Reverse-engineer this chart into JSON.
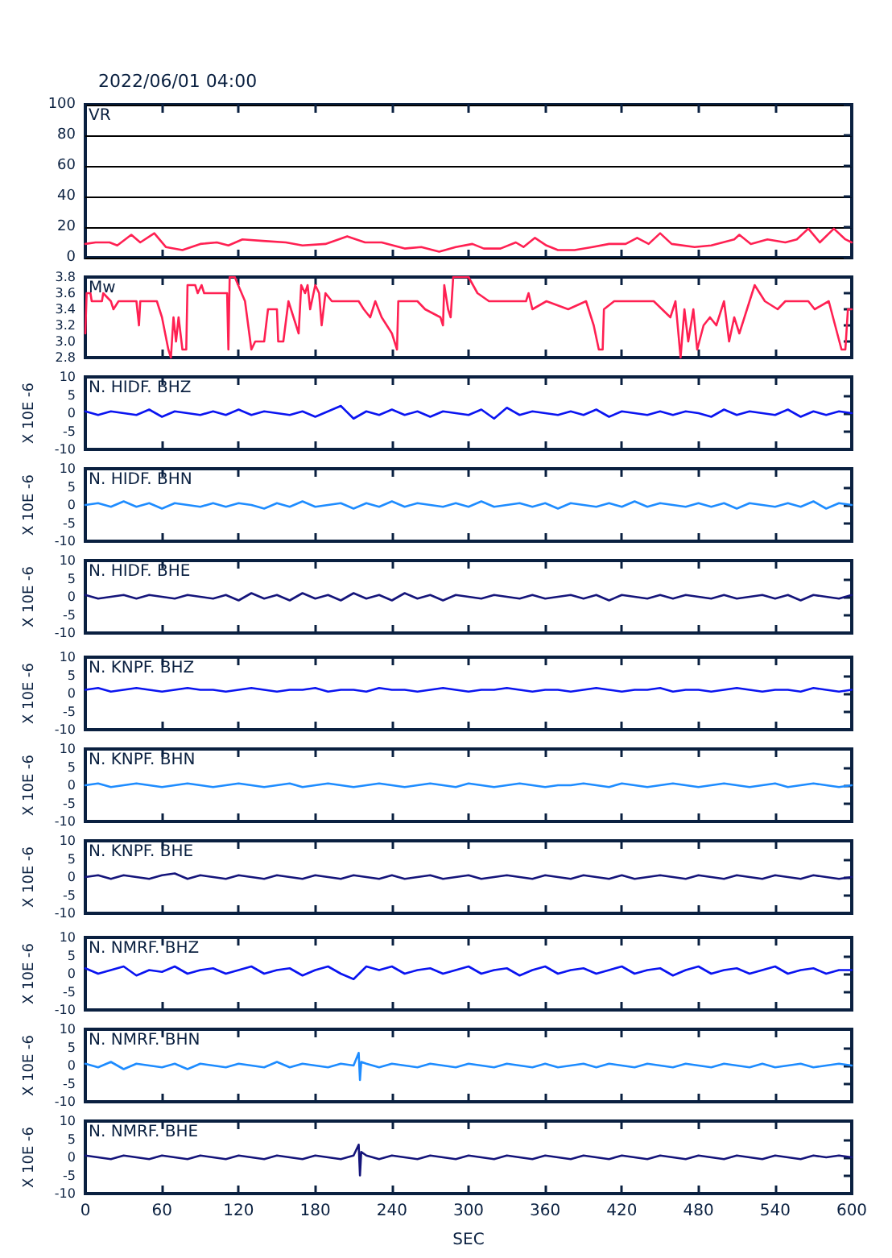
{
  "chart_data": [
    {
      "type": "line",
      "title": "VR",
      "annotations": [
        "2022/06/01 04:00"
      ],
      "x": [
        0,
        8,
        19,
        25,
        36,
        43,
        54,
        63,
        76,
        90,
        103,
        112,
        123,
        139,
        157,
        170,
        188,
        205,
        219,
        232,
        250,
        263,
        277,
        290,
        303,
        312,
        325,
        337,
        343,
        352,
        361,
        370,
        383,
        397,
        410,
        423,
        432,
        441,
        450,
        459,
        477,
        490,
        508,
        512,
        521,
        534,
        548,
        557,
        566,
        575,
        586,
        595,
        600
      ],
      "series": [
        {
          "color": "#ff2052",
          "values": [
            9,
            10,
            10,
            8,
            15,
            10,
            16,
            7,
            5,
            9,
            10,
            8,
            12,
            11,
            10,
            8,
            9,
            14,
            10,
            10,
            6,
            7,
            4,
            7,
            9,
            6,
            6,
            10,
            7,
            13,
            8,
            5,
            5,
            7,
            9,
            9,
            13,
            9,
            16,
            9,
            7,
            8,
            12,
            15,
            9,
            12,
            10,
            12,
            19,
            10,
            19,
            12,
            10
          ]
        }
      ],
      "xlim": [
        0,
        600
      ],
      "xticks": [
        0,
        60,
        120,
        180,
        240,
        300,
        360,
        420,
        480,
        540,
        600
      ],
      "ylim": [
        0,
        100
      ],
      "yticks": [
        0,
        20,
        40,
        60,
        80,
        100
      ],
      "grid": "y",
      "tick_labels": "y"
    },
    {
      "type": "line",
      "title": "Mw",
      "x": [
        0,
        1,
        4,
        5,
        13,
        14,
        20,
        22,
        26,
        40,
        42,
        43,
        56,
        60,
        65,
        67,
        69,
        71,
        73,
        76,
        79,
        80,
        86,
        88,
        91,
        93,
        111,
        112,
        113,
        117,
        125,
        130,
        133,
        140,
        143,
        150,
        151,
        155,
        159,
        163,
        167,
        169,
        172,
        174,
        176,
        180,
        183,
        185,
        188,
        193,
        214,
        218,
        223,
        227,
        232,
        240,
        244,
        245,
        260,
        266,
        278,
        280,
        281,
        284,
        286,
        288,
        300,
        307,
        316,
        345,
        347,
        350,
        361,
        378,
        392,
        398,
        402,
        405,
        406,
        414,
        445,
        458,
        462,
        466,
        469,
        472,
        476,
        479,
        484,
        489,
        494,
        500,
        504,
        508,
        512,
        516,
        524,
        532,
        542,
        548,
        566,
        571,
        582,
        592,
        595,
        597,
        600
      ],
      "series": [
        {
          "color": "#ff2052",
          "values": [
            3.1,
            3.6,
            3.6,
            3.5,
            3.5,
            3.6,
            3.5,
            3.4,
            3.5,
            3.5,
            3.2,
            3.5,
            3.5,
            3.3,
            2.9,
            2.8,
            3.3,
            3.0,
            3.3,
            2.9,
            2.9,
            3.7,
            3.7,
            3.6,
            3.7,
            3.6,
            3.6,
            2.9,
            3.8,
            3.8,
            3.5,
            2.9,
            3.0,
            3.0,
            3.4,
            3.4,
            3.0,
            3.0,
            3.5,
            3.3,
            3.1,
            3.7,
            3.6,
            3.7,
            3.4,
            3.7,
            3.6,
            3.2,
            3.6,
            3.5,
            3.5,
            3.4,
            3.3,
            3.5,
            3.3,
            3.1,
            2.9,
            3.5,
            3.5,
            3.4,
            3.3,
            3.2,
            3.7,
            3.4,
            3.3,
            3.8,
            3.8,
            3.6,
            3.5,
            3.5,
            3.6,
            3.4,
            3.5,
            3.4,
            3.5,
            3.2,
            2.9,
            2.9,
            3.4,
            3.5,
            3.5,
            3.3,
            3.5,
            2.8,
            3.4,
            3.0,
            3.4,
            2.9,
            3.2,
            3.3,
            3.2,
            3.5,
            3.0,
            3.3,
            3.1,
            3.3,
            3.7,
            3.5,
            3.4,
            3.5,
            3.5,
            3.4,
            3.5,
            2.9,
            2.9,
            3.4,
            3.4
          ]
        }
      ],
      "xlim": [
        0,
        600
      ],
      "xticks": [
        0,
        60,
        120,
        180,
        240,
        300,
        360,
        420,
        480,
        540,
        600
      ],
      "ylim": [
        2.8,
        3.8
      ],
      "yticks": [
        2.8,
        {
          "value": 3,
          "label": "3.0"
        },
        3.2,
        3.4,
        3.6,
        3.8
      ],
      "tick_labels": "y"
    },
    {
      "type": "line",
      "title": "N. HIDF. BHZ",
      "ylabel": "X 10E -6",
      "x": [
        0,
        10,
        20,
        30,
        40,
        50,
        60,
        70,
        80,
        90,
        100,
        110,
        120,
        130,
        140,
        150,
        160,
        170,
        180,
        190,
        200,
        210,
        220,
        230,
        240,
        250,
        260,
        270,
        280,
        290,
        300,
        310,
        320,
        330,
        340,
        350,
        360,
        370,
        380,
        390,
        400,
        410,
        420,
        430,
        440,
        450,
        460,
        470,
        480,
        490,
        500,
        510,
        520,
        530,
        540,
        550,
        560,
        570,
        580,
        590,
        600
      ],
      "series": [
        {
          "color": "#0a14f0",
          "values": [
            0.5,
            -0.5,
            0.5,
            0,
            -0.5,
            1,
            -1,
            0.5,
            0,
            -0.5,
            0.5,
            -0.5,
            1,
            -0.5,
            0.5,
            0,
            -0.5,
            0.5,
            -1,
            0.5,
            2,
            -1.5,
            0.5,
            -0.5,
            1,
            -0.5,
            0.5,
            -1,
            0.5,
            0,
            -0.5,
            1,
            -1.5,
            1.5,
            -0.5,
            0.5,
            0,
            -0.5,
            0.5,
            -0.5,
            1,
            -1,
            0.5,
            0,
            -0.5,
            0.5,
            -0.5,
            0.5,
            0,
            -1,
            1,
            -0.5,
            0.5,
            0,
            -0.5,
            1,
            -1,
            0.5,
            -0.5,
            0.5,
            0
          ]
        }
      ],
      "xlim": [
        0,
        600
      ],
      "xticks": [
        0,
        60,
        120,
        180,
        240,
        300,
        360,
        420,
        480,
        540,
        600
      ],
      "ylim": [
        -10,
        10
      ],
      "yticks": [
        -10,
        -5,
        0,
        5,
        10
      ],
      "tick_labels": "y"
    },
    {
      "type": "line",
      "title": "N. HIDF. BHN",
      "ylabel": "X 10E -6",
      "x": [
        0,
        10,
        20,
        30,
        40,
        50,
        60,
        70,
        80,
        90,
        100,
        110,
        120,
        130,
        140,
        150,
        160,
        170,
        180,
        190,
        200,
        210,
        220,
        230,
        240,
        250,
        260,
        270,
        280,
        290,
        300,
        310,
        320,
        330,
        340,
        350,
        360,
        370,
        380,
        390,
        400,
        410,
        420,
        430,
        440,
        450,
        460,
        470,
        480,
        490,
        500,
        510,
        520,
        530,
        540,
        550,
        560,
        570,
        580,
        590,
        600
      ],
      "series": [
        {
          "color": "#1e8cff",
          "values": [
            0,
            0.5,
            -0.5,
            1,
            -0.5,
            0.5,
            -1,
            0.5,
            0,
            -0.5,
            0.5,
            -0.5,
            0.5,
            0,
            -1,
            0.5,
            -0.5,
            1,
            -0.5,
            0,
            0.5,
            -1,
            0.5,
            -0.5,
            1,
            -0.5,
            0.5,
            0,
            -0.5,
            0.5,
            -0.5,
            1,
            -0.5,
            0,
            0.5,
            -0.5,
            0.5,
            -1,
            0.5,
            0,
            -0.5,
            0.5,
            -0.5,
            1,
            -0.5,
            0.5,
            0,
            -0.5,
            0.5,
            -0.5,
            0.5,
            -1,
            0.5,
            0,
            -0.5,
            0.5,
            -0.5,
            1,
            -1,
            0.5,
            0
          ]
        }
      ],
      "xlim": [
        0,
        600
      ],
      "xticks": [
        0,
        60,
        120,
        180,
        240,
        300,
        360,
        420,
        480,
        540,
        600
      ],
      "ylim": [
        -10,
        10
      ],
      "yticks": [
        -10,
        -5,
        0,
        5,
        10
      ],
      "tick_labels": "y"
    },
    {
      "type": "line",
      "title": "N. HIDF. BHE",
      "ylabel": "X 10E -6",
      "x": [
        0,
        10,
        20,
        30,
        40,
        50,
        60,
        70,
        80,
        90,
        100,
        110,
        120,
        130,
        140,
        150,
        160,
        170,
        180,
        190,
        200,
        210,
        220,
        230,
        240,
        250,
        260,
        270,
        280,
        290,
        300,
        310,
        320,
        330,
        340,
        350,
        360,
        370,
        380,
        390,
        400,
        410,
        420,
        430,
        440,
        450,
        460,
        470,
        480,
        490,
        500,
        510,
        520,
        530,
        540,
        550,
        560,
        570,
        580,
        590,
        600
      ],
      "series": [
        {
          "color": "#14147a",
          "values": [
            0.5,
            -0.5,
            0,
            0.5,
            -0.5,
            0.5,
            0,
            -0.5,
            0.5,
            0,
            -0.5,
            0.5,
            -1,
            1,
            -0.5,
            0.5,
            -1,
            1,
            -0.5,
            0.5,
            -1,
            1,
            -0.5,
            0.5,
            -1,
            1,
            -0.5,
            0.5,
            -1,
            0.5,
            0,
            -0.5,
            0.5,
            0,
            -0.5,
            0.5,
            -0.5,
            0,
            0.5,
            -0.5,
            0.5,
            -1,
            0.5,
            0,
            -0.5,
            0.5,
            -0.5,
            0.5,
            0,
            -0.5,
            0.5,
            -0.5,
            0,
            0.5,
            -0.5,
            0.5,
            -1,
            0.5,
            0,
            -0.5,
            0.5
          ]
        }
      ],
      "xlim": [
        0,
        600
      ],
      "xticks": [
        0,
        60,
        120,
        180,
        240,
        300,
        360,
        420,
        480,
        540,
        600
      ],
      "ylim": [
        -10,
        10
      ],
      "yticks": [
        -10,
        -5,
        0,
        5,
        10
      ],
      "tick_labels": "y"
    },
    {
      "type": "line",
      "title": "N. KNPF. BHZ",
      "ylabel": "X 10E -6",
      "x": [
        0,
        10,
        20,
        30,
        40,
        50,
        60,
        70,
        80,
        90,
        100,
        110,
        120,
        130,
        140,
        150,
        160,
        170,
        180,
        190,
        200,
        210,
        220,
        230,
        240,
        250,
        260,
        270,
        280,
        290,
        300,
        310,
        320,
        330,
        340,
        350,
        360,
        370,
        380,
        390,
        400,
        410,
        420,
        430,
        440,
        450,
        460,
        470,
        480,
        490,
        500,
        510,
        520,
        530,
        540,
        550,
        560,
        570,
        580,
        590,
        600
      ],
      "series": [
        {
          "color": "#0a14f0",
          "values": [
            1,
            1.5,
            0.5,
            1,
            1.5,
            1,
            0.5,
            1,
            1.5,
            1,
            1,
            0.5,
            1,
            1.5,
            1,
            0.5,
            1,
            1,
            1.5,
            0.5,
            1,
            1,
            0.5,
            1.5,
            1,
            1,
            0.5,
            1,
            1.5,
            1,
            0.5,
            1,
            1,
            1.5,
            1,
            0.5,
            1,
            1,
            0.5,
            1,
            1.5,
            1,
            0.5,
            1,
            1,
            1.5,
            0.5,
            1,
            1,
            0.5,
            1,
            1.5,
            1,
            0.5,
            1,
            1,
            0.5,
            1.5,
            1,
            0.5,
            1
          ]
        }
      ],
      "xlim": [
        0,
        600
      ],
      "xticks": [
        0,
        60,
        120,
        180,
        240,
        300,
        360,
        420,
        480,
        540,
        600
      ],
      "ylim": [
        -10,
        10
      ],
      "yticks": [
        -10,
        -5,
        0,
        5,
        10
      ],
      "tick_labels": "y"
    },
    {
      "type": "line",
      "title": "N. KNPF. BHN",
      "ylabel": "X 10E -6",
      "x": [
        0,
        10,
        20,
        30,
        40,
        50,
        60,
        70,
        80,
        90,
        100,
        110,
        120,
        130,
        140,
        150,
        160,
        170,
        180,
        190,
        200,
        210,
        220,
        230,
        240,
        250,
        260,
        270,
        280,
        290,
        300,
        310,
        320,
        330,
        340,
        350,
        360,
        370,
        380,
        390,
        400,
        410,
        420,
        430,
        440,
        450,
        460,
        470,
        480,
        490,
        500,
        510,
        520,
        530,
        540,
        550,
        560,
        570,
        580,
        590,
        600
      ],
      "series": [
        {
          "color": "#1e8cff",
          "values": [
            0,
            0.5,
            -0.5,
            0,
            0.5,
            0,
            -0.5,
            0,
            0.5,
            0,
            -0.5,
            0,
            0.5,
            0,
            -0.5,
            0,
            0.5,
            -0.5,
            0,
            0.5,
            0,
            -0.5,
            0,
            0.5,
            0,
            -0.5,
            0,
            0.5,
            0,
            -0.5,
            0.5,
            0,
            -0.5,
            0,
            0.5,
            0,
            -0.5,
            0,
            0,
            0.5,
            0,
            -0.5,
            0.5,
            0,
            -0.5,
            0,
            0.5,
            0,
            -0.5,
            0,
            0.5,
            0,
            -0.5,
            0,
            0.5,
            -0.5,
            0,
            0.5,
            0,
            -0.5,
            0
          ]
        }
      ],
      "xlim": [
        0,
        600
      ],
      "xticks": [
        0,
        60,
        120,
        180,
        240,
        300,
        360,
        420,
        480,
        540,
        600
      ],
      "ylim": [
        -10,
        10
      ],
      "yticks": [
        -10,
        -5,
        0,
        5,
        10
      ],
      "tick_labels": "y"
    },
    {
      "type": "line",
      "title": "N. KNPF. BHE",
      "ylabel": "X 10E -6",
      "x": [
        0,
        10,
        20,
        30,
        40,
        50,
        60,
        70,
        80,
        90,
        100,
        110,
        120,
        130,
        140,
        150,
        160,
        170,
        180,
        190,
        200,
        210,
        220,
        230,
        240,
        250,
        260,
        270,
        280,
        290,
        300,
        310,
        320,
        330,
        340,
        350,
        360,
        370,
        380,
        390,
        400,
        410,
        420,
        430,
        440,
        450,
        460,
        470,
        480,
        490,
        500,
        510,
        520,
        530,
        540,
        550,
        560,
        570,
        580,
        590,
        600
      ],
      "series": [
        {
          "color": "#14147a",
          "values": [
            0,
            0.5,
            -0.5,
            0.5,
            0,
            -0.5,
            0.5,
            1,
            -0.5,
            0.5,
            0,
            -0.5,
            0.5,
            0,
            -0.5,
            0.5,
            0,
            -0.5,
            0.5,
            0,
            -0.5,
            0.5,
            0,
            -0.5,
            0.5,
            -0.5,
            0,
            0.5,
            -0.5,
            0,
            0.5,
            -0.5,
            0,
            0.5,
            0,
            -0.5,
            0.5,
            0,
            -0.5,
            0.5,
            0,
            -0.5,
            0.5,
            -0.5,
            0,
            0.5,
            0,
            -0.5,
            0.5,
            0,
            -0.5,
            0.5,
            0,
            -0.5,
            0.5,
            0,
            -0.5,
            0.5,
            0,
            -0.5,
            0
          ]
        }
      ],
      "xlim": [
        0,
        600
      ],
      "xticks": [
        0,
        60,
        120,
        180,
        240,
        300,
        360,
        420,
        480,
        540,
        600
      ],
      "ylim": [
        -10,
        10
      ],
      "yticks": [
        -10,
        -5,
        0,
        5,
        10
      ],
      "tick_labels": "y"
    },
    {
      "type": "line",
      "title": "N. NMRF. BHZ",
      "ylabel": "X 10E -6",
      "x": [
        0,
        10,
        20,
        30,
        40,
        50,
        60,
        70,
        80,
        90,
        100,
        110,
        120,
        130,
        140,
        150,
        160,
        170,
        180,
        190,
        200,
        210,
        220,
        230,
        240,
        250,
        260,
        270,
        280,
        290,
        300,
        310,
        320,
        330,
        340,
        350,
        360,
        370,
        380,
        390,
        400,
        410,
        420,
        430,
        440,
        450,
        460,
        470,
        480,
        490,
        500,
        510,
        520,
        530,
        540,
        550,
        560,
        570,
        580,
        590,
        600
      ],
      "series": [
        {
          "color": "#0a14f0",
          "values": [
            1.5,
            0,
            1,
            2,
            -0.5,
            1,
            0.5,
            2,
            0,
            1,
            1.5,
            0,
            1,
            2,
            0,
            1,
            1.5,
            -0.5,
            1,
            2,
            0,
            -1.5,
            2,
            1,
            2,
            0,
            1,
            1.5,
            0,
            1,
            2,
            0,
            1,
            1.5,
            -0.5,
            1,
            2,
            0,
            1,
            1.5,
            0,
            1,
            2,
            0,
            1,
            1.5,
            -0.5,
            1,
            2,
            0,
            1,
            1.5,
            0,
            1,
            2,
            0,
            1,
            1.5,
            0,
            1,
            1
          ]
        }
      ],
      "xlim": [
        0,
        600
      ],
      "xticks": [
        0,
        60,
        120,
        180,
        240,
        300,
        360,
        420,
        480,
        540,
        600
      ],
      "ylim": [
        -10,
        10
      ],
      "yticks": [
        -10,
        -5,
        0,
        5,
        10
      ],
      "tick_labels": "y"
    },
    {
      "type": "line",
      "title": "N. NMRF. BHN",
      "ylabel": "X 10E -6",
      "x": [
        0,
        10,
        20,
        30,
        40,
        50,
        60,
        70,
        80,
        90,
        100,
        110,
        120,
        130,
        140,
        150,
        160,
        170,
        180,
        190,
        200,
        210,
        214,
        215,
        216,
        220,
        230,
        240,
        250,
        260,
        270,
        280,
        290,
        300,
        310,
        320,
        330,
        340,
        350,
        360,
        370,
        380,
        390,
        400,
        410,
        420,
        430,
        440,
        450,
        460,
        470,
        480,
        490,
        500,
        510,
        520,
        530,
        540,
        550,
        560,
        570,
        580,
        590,
        600
      ],
      "series": [
        {
          "color": "#1e8cff",
          "values": [
            0.5,
            -0.5,
            1,
            -1,
            0.5,
            0,
            -0.5,
            0.5,
            -1,
            0.5,
            0,
            -0.5,
            0.5,
            0,
            -0.5,
            1,
            -0.5,
            0.5,
            0,
            -0.5,
            0.5,
            0,
            3.5,
            -4,
            1,
            0.5,
            -0.5,
            0.5,
            0,
            -0.5,
            0.5,
            0,
            -0.5,
            0.5,
            0,
            -0.5,
            0.5,
            0,
            -0.5,
            0.5,
            -0.5,
            0,
            0.5,
            -0.5,
            0.5,
            0,
            -0.5,
            0.5,
            0,
            -0.5,
            0.5,
            0,
            -0.5,
            0.5,
            0,
            -0.5,
            0.5,
            -0.5,
            0,
            0.5,
            -0.5,
            0,
            0.5,
            0
          ]
        }
      ],
      "xlim": [
        0,
        600
      ],
      "xticks": [
        0,
        60,
        120,
        180,
        240,
        300,
        360,
        420,
        480,
        540,
        600
      ],
      "ylim": [
        -10,
        10
      ],
      "yticks": [
        -10,
        -5,
        0,
        5,
        10
      ],
      "tick_labels": "y"
    },
    {
      "type": "line",
      "title": "N. NMRF. BHE",
      "ylabel": "X 10E -6",
      "xlabel": "SEC",
      "x": [
        0,
        10,
        20,
        30,
        40,
        50,
        60,
        70,
        80,
        90,
        100,
        110,
        120,
        130,
        140,
        150,
        160,
        170,
        180,
        190,
        200,
        210,
        214,
        215,
        216,
        220,
        230,
        240,
        250,
        260,
        270,
        280,
        290,
        300,
        310,
        320,
        330,
        340,
        350,
        360,
        370,
        380,
        390,
        400,
        410,
        420,
        430,
        440,
        450,
        460,
        470,
        480,
        490,
        500,
        510,
        520,
        530,
        540,
        550,
        560,
        570,
        580,
        590,
        600
      ],
      "series": [
        {
          "color": "#14147a",
          "values": [
            0.5,
            0,
            -0.5,
            0.5,
            0,
            -0.5,
            0.5,
            0,
            -0.5,
            0.5,
            0,
            -0.5,
            0.5,
            0,
            -0.5,
            0.5,
            0,
            -0.5,
            0.5,
            0,
            -0.5,
            0.5,
            3.5,
            -5,
            1.5,
            0.5,
            -0.5,
            0.5,
            0,
            -0.5,
            0.5,
            0,
            -0.5,
            0.5,
            0,
            -0.5,
            0.5,
            0,
            -0.5,
            0.5,
            0,
            -0.5,
            0.5,
            0,
            -0.5,
            0.5,
            0,
            -0.5,
            0.5,
            0,
            -0.5,
            0.5,
            0,
            -0.5,
            0.5,
            0,
            -0.5,
            0.5,
            0,
            -0.5,
            0.5,
            0,
            0.5,
            0
          ]
        }
      ],
      "xlim": [
        0,
        600
      ],
      "xticks": [
        0,
        60,
        120,
        180,
        240,
        300,
        360,
        420,
        480,
        540,
        600
      ],
      "ylim": [
        -10,
        10
      ],
      "yticks": [
        -10,
        -5,
        0,
        5,
        10
      ]
    }
  ]
}
